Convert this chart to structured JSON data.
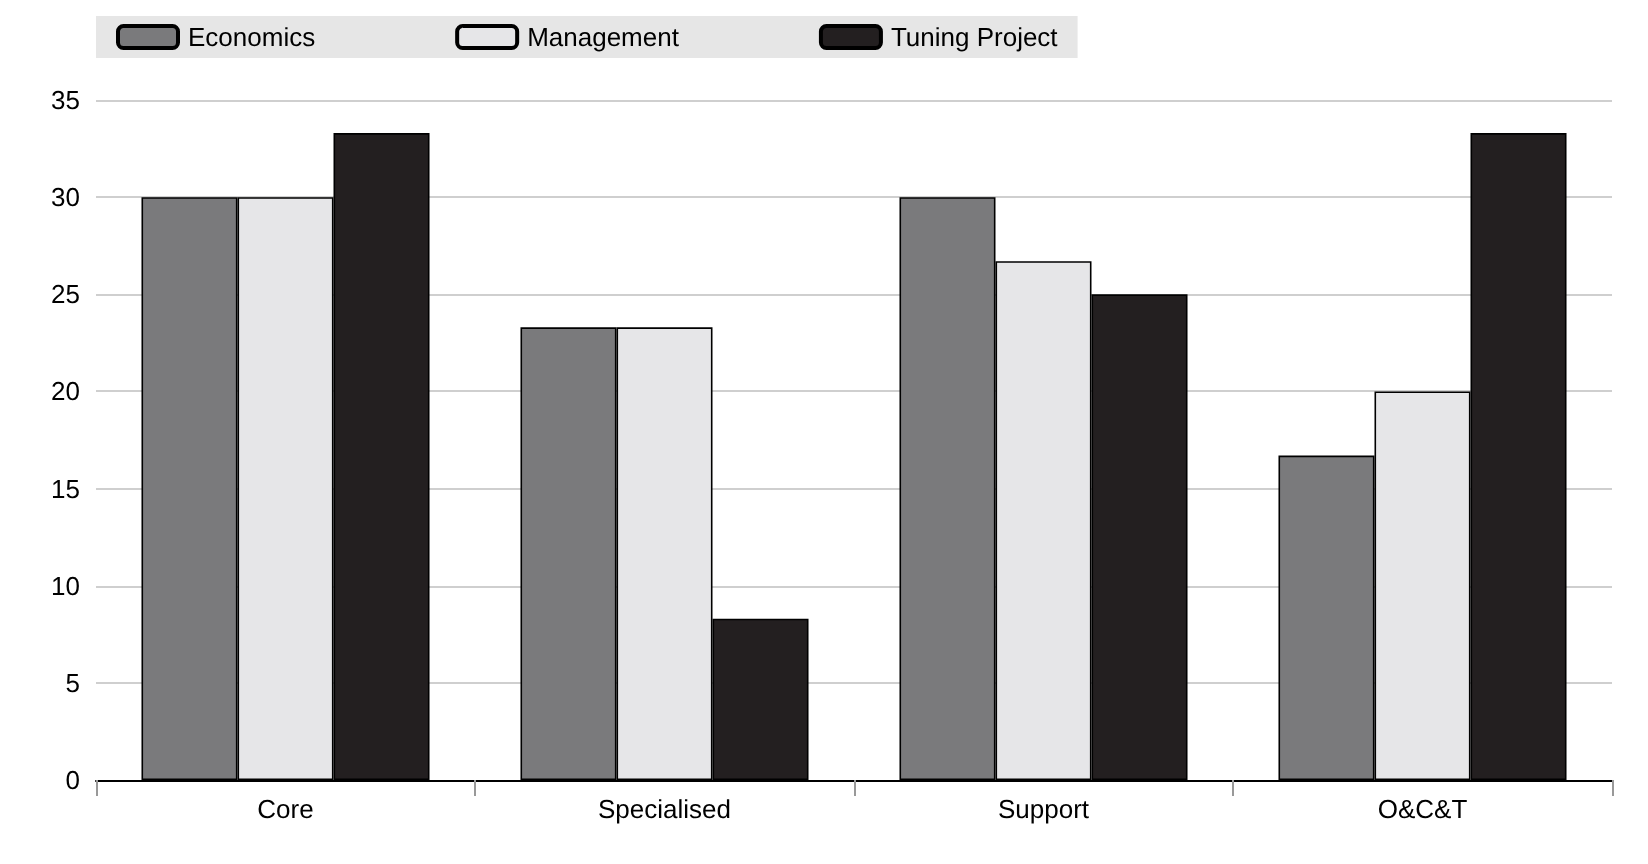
{
  "chart_data": {
    "type": "bar",
    "categories": [
      "Core",
      "Specialised",
      "Support",
      "O&C&T"
    ],
    "series": [
      {
        "name": "Economics",
        "color": "#7a7a7c",
        "values": [
          30,
          23.3,
          30,
          16.7
        ]
      },
      {
        "name": "Management",
        "color": "#e6e6e8",
        "values": [
          30,
          23.3,
          26.7,
          20
        ]
      },
      {
        "name": "Tuning Project",
        "color": "#231f20",
        "values": [
          33.3,
          8.3,
          25,
          33.3
        ]
      }
    ],
    "ylim": [
      0,
      35
    ],
    "yticks": [
      0,
      5,
      10,
      15,
      20,
      25,
      30,
      35
    ],
    "grid": "y",
    "legend": "top"
  }
}
